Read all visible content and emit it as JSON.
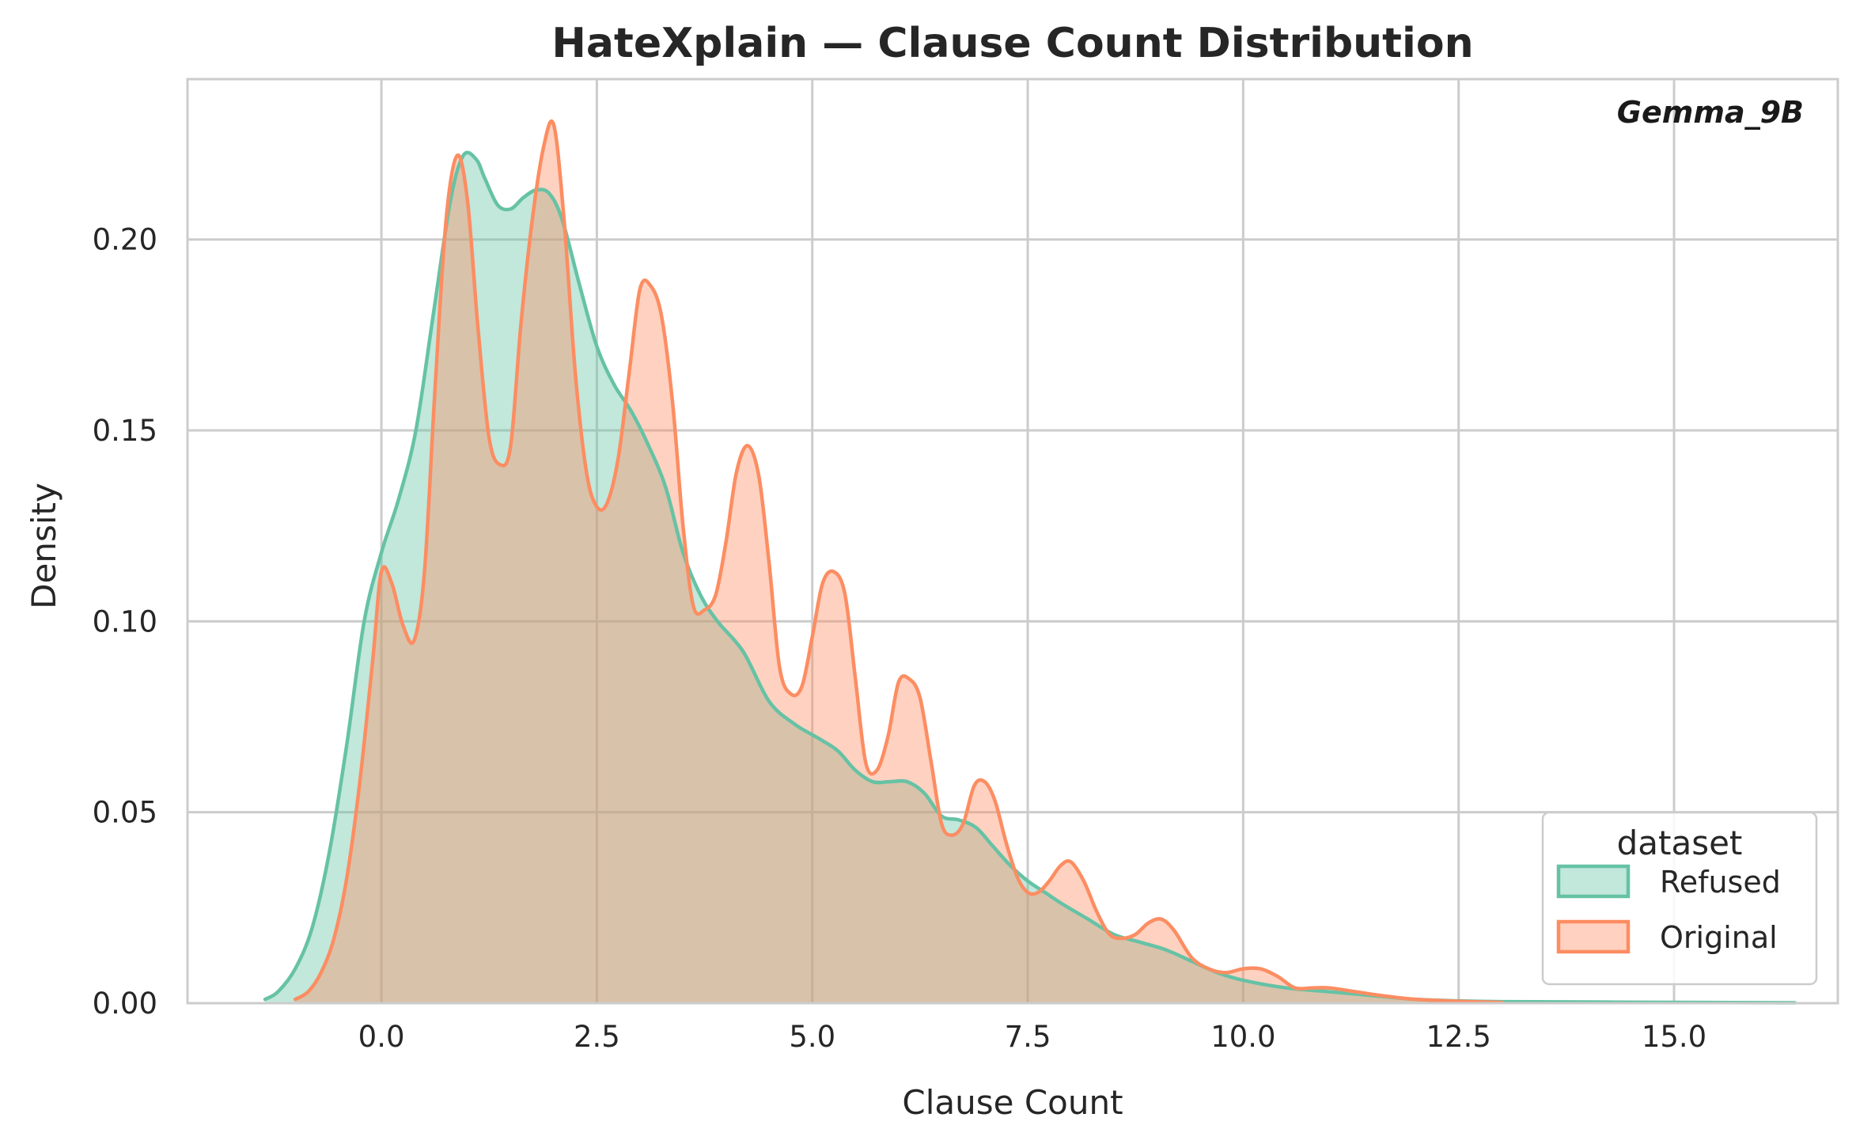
{
  "chart_data": {
    "type": "area",
    "title": "HateXplain — Clause Count Distribution",
    "xlabel": "Clause Count",
    "ylabel": "Density",
    "annotation": "Gemma_9B",
    "xlim": [
      -2.25,
      16.9
    ],
    "ylim": [
      0,
      0.242
    ],
    "xticks": [
      0.0,
      2.5,
      5.0,
      7.5,
      10.0,
      12.5,
      15.0
    ],
    "xtick_labels": [
      "0.0",
      "2.5",
      "5.0",
      "7.5",
      "10.0",
      "12.5",
      "15.0"
    ],
    "yticks": [
      0.0,
      0.05,
      0.1,
      0.15,
      0.2
    ],
    "ytick_labels": [
      "0.00",
      "0.05",
      "0.10",
      "0.15",
      "0.20"
    ],
    "grid": true,
    "legend": {
      "title": "dataset",
      "position": "lower-right"
    },
    "series": [
      {
        "name": "Refused",
        "color": "#66c2a5",
        "x": [
          -1.35,
          -1.2,
          -1.0,
          -0.8,
          -0.6,
          -0.4,
          -0.2,
          0.0,
          0.2,
          0.4,
          0.6,
          0.8,
          0.95,
          1.1,
          1.2,
          1.35,
          1.5,
          1.65,
          1.8,
          1.95,
          2.1,
          2.3,
          2.5,
          2.7,
          2.9,
          3.1,
          3.3,
          3.5,
          3.7,
          3.9,
          4.2,
          4.5,
          4.8,
          5.1,
          5.3,
          5.5,
          5.7,
          5.9,
          6.1,
          6.3,
          6.5,
          6.7,
          6.9,
          7.1,
          7.3,
          7.5,
          7.7,
          7.9,
          8.2,
          8.5,
          8.8,
          9.1,
          9.4,
          9.7,
          10.0,
          10.5,
          11.0,
          11.5,
          12.0,
          12.5,
          13.0,
          14.0,
          15.0,
          16.4
        ],
        "y": [
          0.001,
          0.003,
          0.009,
          0.02,
          0.04,
          0.068,
          0.1,
          0.118,
          0.132,
          0.15,
          0.18,
          0.21,
          0.222,
          0.221,
          0.216,
          0.209,
          0.208,
          0.211,
          0.213,
          0.212,
          0.205,
          0.188,
          0.172,
          0.162,
          0.155,
          0.146,
          0.135,
          0.118,
          0.107,
          0.1,
          0.092,
          0.079,
          0.073,
          0.069,
          0.066,
          0.061,
          0.058,
          0.058,
          0.058,
          0.055,
          0.049,
          0.048,
          0.046,
          0.041,
          0.036,
          0.032,
          0.029,
          0.026,
          0.022,
          0.018,
          0.016,
          0.014,
          0.011,
          0.008,
          0.006,
          0.004,
          0.003,
          0.002,
          0.001,
          0.0006,
          0.0004,
          0.0003,
          0.0002,
          0.0001
        ]
      },
      {
        "name": "Original",
        "color": "#fc8d62",
        "x": [
          -1.0,
          -0.85,
          -0.7,
          -0.55,
          -0.4,
          -0.25,
          -0.1,
          0.0,
          0.12,
          0.25,
          0.38,
          0.5,
          0.62,
          0.75,
          0.88,
          1.0,
          1.12,
          1.25,
          1.38,
          1.5,
          1.62,
          1.75,
          1.88,
          2.0,
          2.12,
          2.25,
          2.38,
          2.5,
          2.62,
          2.75,
          2.88,
          3.0,
          3.12,
          3.25,
          3.38,
          3.5,
          3.62,
          3.75,
          3.88,
          4.0,
          4.12,
          4.25,
          4.38,
          4.5,
          4.62,
          4.75,
          4.88,
          5.0,
          5.12,
          5.25,
          5.38,
          5.5,
          5.62,
          5.75,
          5.88,
          6.0,
          6.12,
          6.25,
          6.38,
          6.5,
          6.62,
          6.75,
          6.88,
          7.0,
          7.12,
          7.25,
          7.38,
          7.5,
          7.62,
          7.75,
          7.88,
          8.0,
          8.15,
          8.3,
          8.45,
          8.6,
          8.75,
          8.9,
          9.05,
          9.2,
          9.4,
          9.6,
          9.8,
          10.0,
          10.2,
          10.4,
          10.6,
          10.8,
          11.0,
          11.3,
          11.6,
          12.0,
          12.5,
          13.0
        ],
        "y": [
          0.001,
          0.003,
          0.008,
          0.017,
          0.033,
          0.058,
          0.09,
          0.113,
          0.11,
          0.099,
          0.095,
          0.113,
          0.16,
          0.205,
          0.222,
          0.21,
          0.177,
          0.148,
          0.141,
          0.146,
          0.178,
          0.205,
          0.224,
          0.23,
          0.205,
          0.165,
          0.139,
          0.13,
          0.131,
          0.143,
          0.166,
          0.187,
          0.188,
          0.18,
          0.157,
          0.125,
          0.104,
          0.103,
          0.107,
          0.121,
          0.139,
          0.146,
          0.138,
          0.115,
          0.088,
          0.081,
          0.083,
          0.096,
          0.11,
          0.113,
          0.107,
          0.085,
          0.063,
          0.061,
          0.07,
          0.084,
          0.085,
          0.08,
          0.063,
          0.047,
          0.044,
          0.047,
          0.057,
          0.058,
          0.053,
          0.042,
          0.033,
          0.029,
          0.029,
          0.032,
          0.036,
          0.037,
          0.032,
          0.024,
          0.018,
          0.017,
          0.018,
          0.021,
          0.022,
          0.019,
          0.012,
          0.009,
          0.008,
          0.009,
          0.009,
          0.007,
          0.004,
          0.004,
          0.004,
          0.003,
          0.002,
          0.001,
          0.0005,
          0.0002
        ]
      }
    ]
  }
}
